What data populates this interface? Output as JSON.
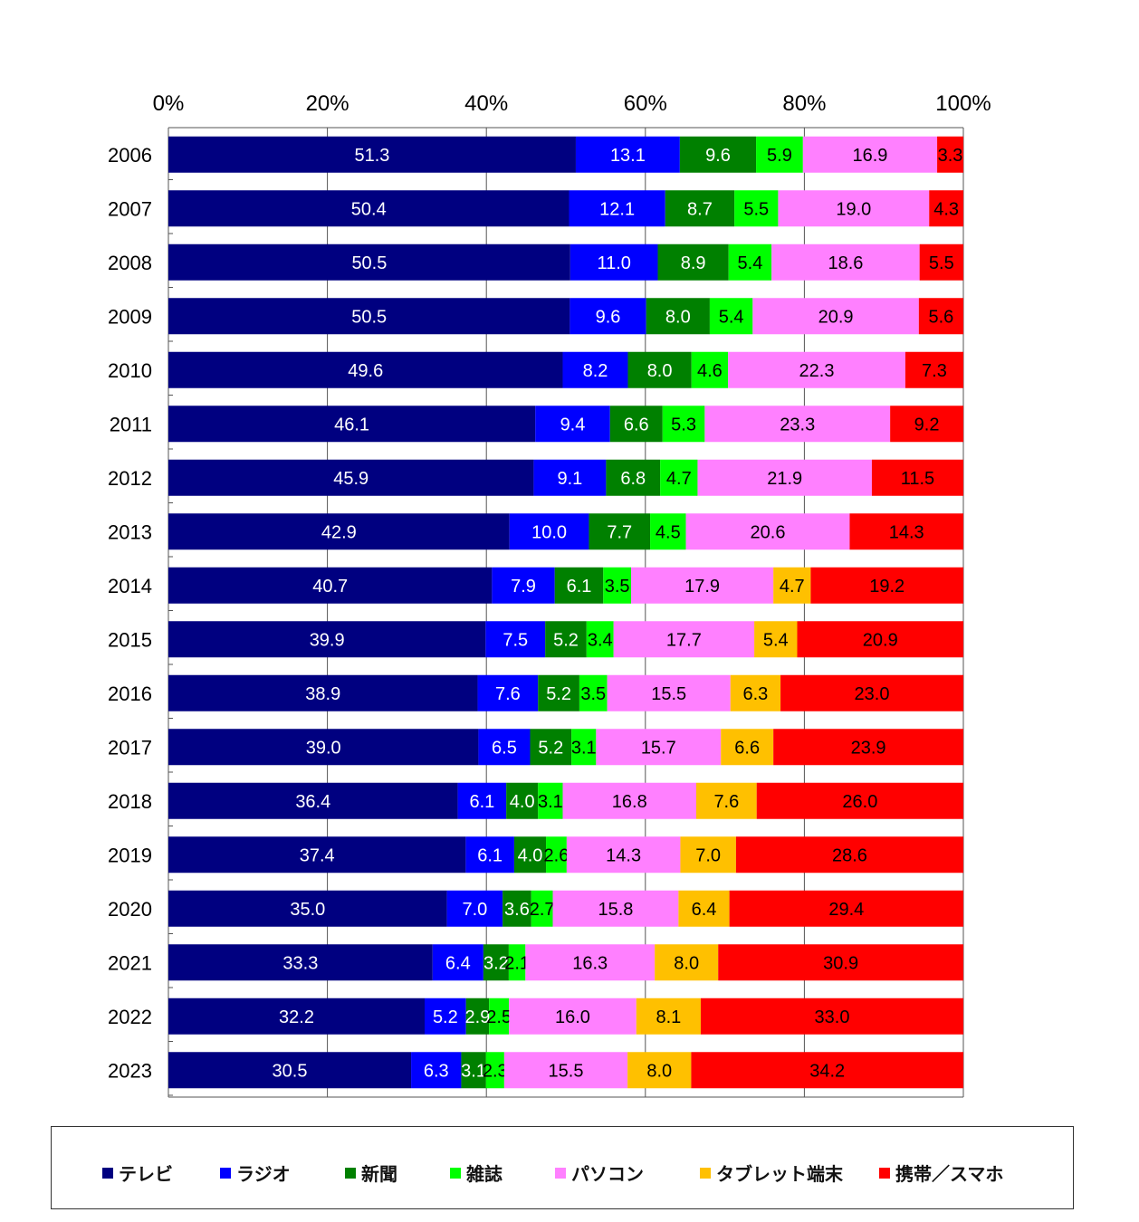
{
  "chart_data": {
    "type": "bar",
    "orientation": "horizontal",
    "stacked": true,
    "percent_scale": true,
    "xlim": [
      0,
      100
    ],
    "x_ticks": [
      "0%",
      "20%",
      "40%",
      "60%",
      "80%",
      "100%"
    ],
    "gridlines": true,
    "legend_position": "bottom",
    "categories": [
      "2006",
      "2007",
      "2008",
      "2009",
      "2010",
      "2011",
      "2012",
      "2013",
      "2014",
      "2015",
      "2016",
      "2017",
      "2018",
      "2019",
      "2020",
      "2021",
      "2022",
      "2023"
    ],
    "series": [
      {
        "name": "テレビ",
        "color": "#000080",
        "label_color": "#ffffff",
        "values": [
          "51.3",
          "50.4",
          "50.5",
          "50.5",
          "49.6",
          "46.1",
          "45.9",
          "42.9",
          "40.7",
          "39.9",
          "38.9",
          "39.0",
          "36.4",
          "37.4",
          "35.0",
          "33.3",
          "32.2",
          "30.5"
        ]
      },
      {
        "name": "ラジオ",
        "color": "#0000ff",
        "label_color": "#ffffff",
        "values": [
          "13.1",
          "12.1",
          "11.0",
          "9.6",
          "8.2",
          "9.4",
          "9.1",
          "10.0",
          "7.9",
          "7.5",
          "7.6",
          "6.5",
          "6.1",
          "6.1",
          "7.0",
          "6.4",
          "5.2",
          "6.3"
        ]
      },
      {
        "name": "新聞",
        "color": "#008000",
        "label_color": "#ffffff",
        "values": [
          "9.6",
          "8.7",
          "8.9",
          "8.0",
          "8.0",
          "6.6",
          "6.8",
          "7.7",
          "6.1",
          "5.2",
          "5.2",
          "5.2",
          "4.0",
          "4.0",
          "3.6",
          "3.2",
          "2.9",
          "3.1"
        ]
      },
      {
        "name": "雑誌",
        "color": "#00ff00",
        "label_color": "#000000",
        "values": [
          "5.9",
          "5.5",
          "5.4",
          "5.4",
          "4.6",
          "5.3",
          "4.7",
          "4.5",
          "3.5",
          "3.4",
          "3.5",
          "3.1",
          "3.1",
          "2.6",
          "2.7",
          "2.1",
          "2.5",
          "2.3"
        ]
      },
      {
        "name": "パソコン",
        "color": "#ff80ff",
        "label_color": "#000000",
        "values": [
          "16.9",
          "19.0",
          "18.6",
          "20.9",
          "22.3",
          "23.3",
          "21.9",
          "20.6",
          "17.9",
          "17.7",
          "15.5",
          "15.7",
          "16.8",
          "14.3",
          "15.8",
          "16.3",
          "16.0",
          "15.5"
        ]
      },
      {
        "name": "タブレット端末",
        "color": "#ffc000",
        "label_color": "#000000",
        "values": [
          null,
          null,
          null,
          null,
          null,
          null,
          null,
          null,
          "4.7",
          "5.4",
          "6.3",
          "6.6",
          "7.6",
          "7.0",
          "6.4",
          "8.0",
          "8.1",
          "8.0"
        ]
      },
      {
        "name": "携帯／スマホ",
        "color": "#ff0000",
        "label_color": "#000000",
        "values": [
          "3.3",
          "4.3",
          "5.5",
          "5.6",
          "7.3",
          "9.2",
          "11.5",
          "14.3",
          "19.2",
          "20.9",
          "23.0",
          "23.9",
          "26.0",
          "28.6",
          "29.4",
          "30.9",
          "33.0",
          "34.2"
        ]
      }
    ]
  }
}
